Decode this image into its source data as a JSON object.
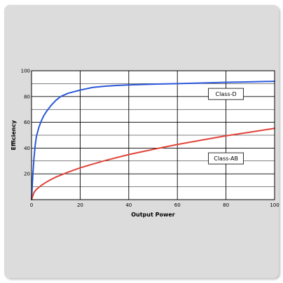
{
  "chart_data": {
    "type": "line",
    "title": "",
    "xlabel": "Output Power",
    "ylabel": "Efficiency",
    "xlim": [
      0,
      100
    ],
    "ylim": [
      0,
      100
    ],
    "x_ticks": [
      "0",
      "20",
      "40",
      "60",
      "80",
      "100"
    ],
    "y_ticks": [
      "20",
      "40",
      "60",
      "80",
      "100"
    ],
    "grid": true,
    "background_color": "#dcdcdc",
    "plot_background": "#ffffff",
    "series": [
      {
        "name": "Class-D",
        "color": "#2b58d9",
        "x": [
          0,
          0.5,
          1,
          1.5,
          2,
          3,
          4,
          5,
          6,
          8,
          10,
          12,
          15,
          18,
          20,
          25,
          30,
          35,
          40,
          50,
          60,
          70,
          80,
          90,
          100
        ],
        "y": [
          0,
          18,
          32,
          42,
          49,
          56,
          61,
          65,
          68,
          73,
          77,
          80,
          82.5,
          84,
          85,
          87,
          88,
          88.6,
          89,
          89.6,
          90,
          90.5,
          91,
          91.4,
          91.8
        ]
      },
      {
        "name": "Class-AB",
        "color": "#e0433a",
        "x": [
          0,
          1,
          2,
          4,
          6,
          8,
          10,
          15,
          20,
          30,
          40,
          50,
          60,
          70,
          80,
          90,
          100
        ],
        "y": [
          0,
          5.5,
          8,
          11,
          13.5,
          15.6,
          17.5,
          21.3,
          24.7,
          30.2,
          35,
          39,
          42.8,
          46.2,
          49.5,
          52.4,
          55.3
        ]
      }
    ],
    "annotations": [
      {
        "text": "Class-D",
        "x": 80,
        "y": 82
      },
      {
        "text": "Class-AB",
        "x": 80,
        "y": 32
      }
    ]
  }
}
